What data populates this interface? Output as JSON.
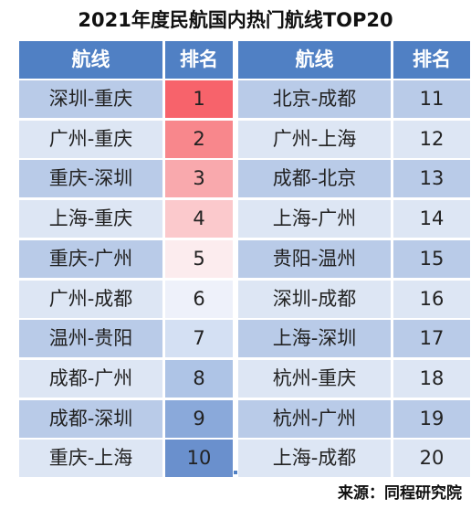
{
  "title": "2021年度民航国内热门航线TOP20",
  "headers": {
    "route": "航线",
    "rank": "排名"
  },
  "left": [
    {
      "route": "深圳-重庆",
      "rank": "1",
      "bg": "#f7636b"
    },
    {
      "route": "广州-重庆",
      "rank": "2",
      "bg": "#f8878c"
    },
    {
      "route": "重庆-深圳",
      "rank": "3",
      "bg": "#f9a9ad"
    },
    {
      "route": "上海-重庆",
      "rank": "4",
      "bg": "#fbc9cc"
    },
    {
      "route": "重庆-广州",
      "rank": "5",
      "bg": "#fcecee"
    },
    {
      "route": "广州-成都",
      "rank": "6",
      "bg": "#eef1fa"
    },
    {
      "route": "温州-贵阳",
      "rank": "7",
      "bg": "#d4e0f3"
    },
    {
      "route": "成都-广州",
      "rank": "8",
      "bg": "#aec4e6"
    },
    {
      "route": "成都-深圳",
      "rank": "9",
      "bg": "#8aa9da"
    },
    {
      "route": "重庆-上海",
      "rank": "10",
      "bg": "#6a90cd"
    }
  ],
  "right": [
    {
      "route": "北京-成都",
      "rank": "11"
    },
    {
      "route": "广州-上海",
      "rank": "12"
    },
    {
      "route": "成都-北京",
      "rank": "13"
    },
    {
      "route": "上海-广州",
      "rank": "14"
    },
    {
      "route": "贵阳-温州",
      "rank": "15"
    },
    {
      "route": "深圳-成都",
      "rank": "16"
    },
    {
      "route": "上海-深圳",
      "rank": "17"
    },
    {
      "route": "杭州-重庆",
      "rank": "18"
    },
    {
      "route": "杭州-广州",
      "rank": "19"
    },
    {
      "route": "上海-成都",
      "rank": "20"
    }
  ],
  "row_colors": {
    "odd": "#b9cbe8",
    "even": "#dde6f4",
    "header": "#5080c4"
  },
  "source": "来源：同程研究院"
}
